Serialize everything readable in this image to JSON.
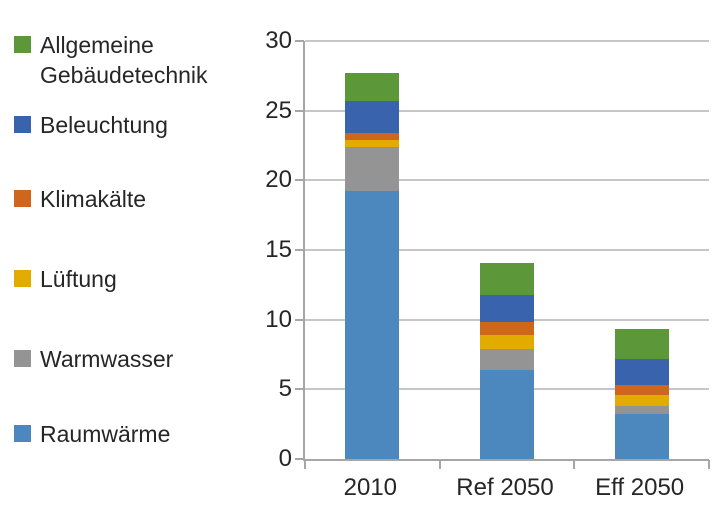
{
  "chart_data": {
    "type": "bar",
    "stacked": true,
    "title": "",
    "categories": [
      "2010",
      "Ref 2050",
      "Eff 2050"
    ],
    "series": [
      {
        "name": "Raumwärme",
        "color": "#4C87BE",
        "values": [
          19.2,
          6.4,
          3.2
        ]
      },
      {
        "name": "Warmwasser",
        "color": "#949494",
        "values": [
          3.2,
          1.5,
          0.6
        ]
      },
      {
        "name": "Lüftung",
        "color": "#E1AB00",
        "values": [
          0.5,
          1.0,
          0.8
        ]
      },
      {
        "name": "Klimakälte",
        "color": "#CE671C",
        "values": [
          0.5,
          0.9,
          0.7
        ]
      },
      {
        "name": "Beleuchtung",
        "color": "#3A63AE",
        "values": [
          2.3,
          2.0,
          1.9
        ]
      },
      {
        "name": "Allgemeine Gebäudetechnik",
        "color": "#5C9839",
        "values": [
          2.0,
          2.3,
          2.1
        ]
      }
    ],
    "totals": [
      27.7,
      14.1,
      9.3
    ],
    "y_ticks": [
      0,
      5,
      10,
      15,
      20,
      25,
      30
    ],
    "ylim": [
      0,
      30
    ],
    "xlabel": "",
    "ylabel": "",
    "grid": true,
    "legend_position": "left",
    "legend_order_top_to_bottom": [
      "Allgemeine Gebäudetechnik",
      "Beleuchtung",
      "Klimakälte",
      "Lüftung",
      "Warmwasser",
      "Raumwärme"
    ],
    "axis_color": "#A6A6A6",
    "gridline_color": "#C6C6C6",
    "text_color": "#262626",
    "background_color": "#FFFFFF"
  }
}
